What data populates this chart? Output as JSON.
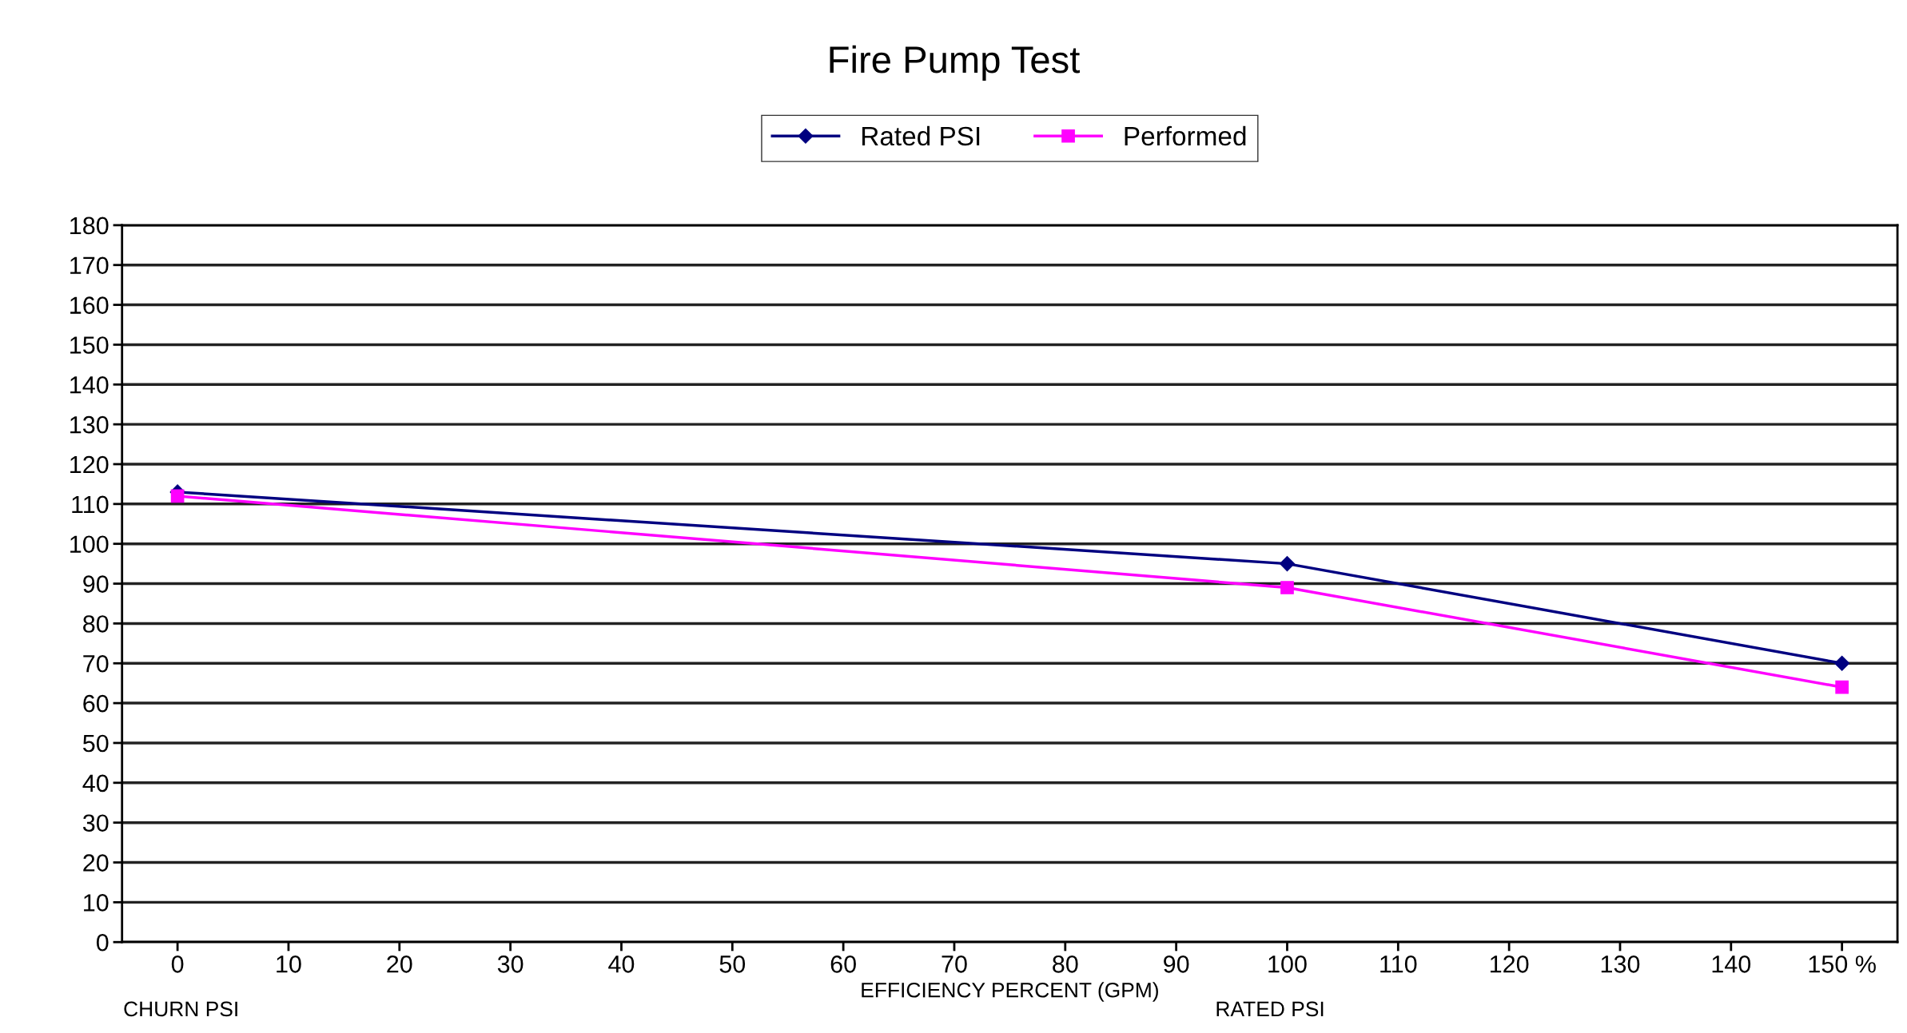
{
  "chart_data": {
    "type": "line",
    "title": "Fire Pump Test",
    "xlabel": "EFFICIENCY PERCENT (GPM)",
    "x": [
      0,
      100,
      150
    ],
    "series": [
      {
        "name": "Rated PSI",
        "color": "#000080",
        "marker": "diamond",
        "values": [
          113,
          95,
          70
        ]
      },
      {
        "name": "Performed",
        "color": "#ff00ff",
        "marker": "square",
        "values": [
          112,
          89,
          64
        ]
      }
    ],
    "xlim": [
      -5,
      155
    ],
    "xticks": [
      0,
      10,
      20,
      30,
      40,
      50,
      60,
      70,
      80,
      90,
      100,
      110,
      120,
      130,
      140,
      {
        "value": 150,
        "label": "150 %"
      }
    ],
    "ylim": [
      0,
      180
    ],
    "yticks": [
      0,
      10,
      20,
      30,
      40,
      50,
      60,
      70,
      80,
      90,
      100,
      110,
      120,
      130,
      140,
      150,
      160,
      170,
      180
    ],
    "annotations": [
      "CHURN PSI",
      "RATED PSI"
    ],
    "grid": "y",
    "legend": "top",
    "line_style": "solid"
  }
}
